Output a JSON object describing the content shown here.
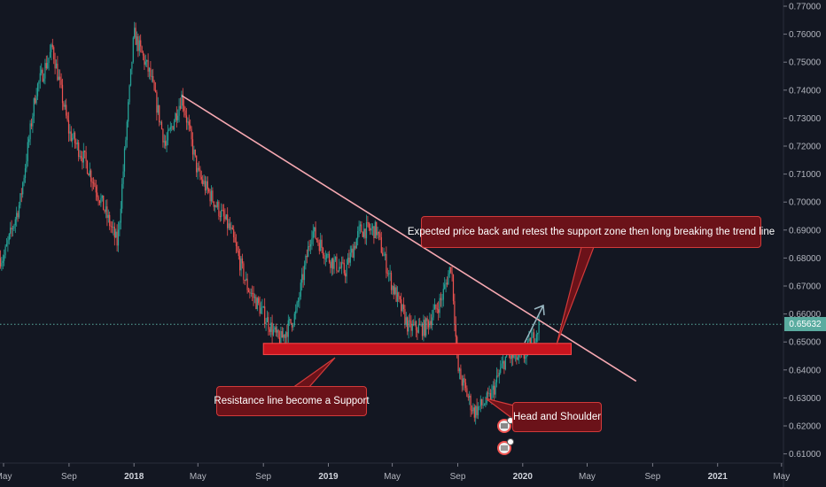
{
  "chart_data": {
    "type": "candlestick",
    "instrument_price_scale": {
      "ylim": [
        0.605,
        0.7725
      ]
    },
    "y_ticks": [
      "0.61000",
      "0.62000",
      "0.63000",
      "0.64000",
      "0.65000",
      "0.66000",
      "0.67000",
      "0.68000",
      "0.69000",
      "0.70000",
      "0.71000",
      "0.72000",
      "0.73000",
      "0.74000",
      "0.75000",
      "0.76000",
      "0.77000"
    ],
    "x_ticks": [
      {
        "label": "May",
        "bold": false
      },
      {
        "label": "Sep",
        "bold": false
      },
      {
        "label": "2018",
        "bold": true
      },
      {
        "label": "May",
        "bold": false
      },
      {
        "label": "Sep",
        "bold": false
      },
      {
        "label": "2019",
        "bold": true
      },
      {
        "label": "May",
        "bold": false
      },
      {
        "label": "Sep",
        "bold": false
      },
      {
        "label": "2020",
        "bold": true
      },
      {
        "label": "May",
        "bold": false
      },
      {
        "label": "Sep",
        "bold": false
      },
      {
        "label": "2021",
        "bold": true
      },
      {
        "label": "May",
        "bold": false
      }
    ],
    "current_price": "0.65632",
    "approx_price_path": [
      {
        "date": "2017-05",
        "value": 0.68
      },
      {
        "date": "2017-06",
        "value": 0.7
      },
      {
        "date": "2017-07",
        "value": 0.74
      },
      {
        "date": "2017-08",
        "value": 0.755
      },
      {
        "date": "2017-09",
        "value": 0.725
      },
      {
        "date": "2017-10",
        "value": 0.715
      },
      {
        "date": "2017-11",
        "value": 0.7
      },
      {
        "date": "2017-12",
        "value": 0.685
      },
      {
        "date": "2018-01",
        "value": 0.76
      },
      {
        "date": "2018-02",
        "value": 0.745
      },
      {
        "date": "2018-03",
        "value": 0.72
      },
      {
        "date": "2018-04",
        "value": 0.738
      },
      {
        "date": "2018-05",
        "value": 0.71
      },
      {
        "date": "2018-06",
        "value": 0.7
      },
      {
        "date": "2018-07",
        "value": 0.69
      },
      {
        "date": "2018-08",
        "value": 0.67
      },
      {
        "date": "2018-09",
        "value": 0.66
      },
      {
        "date": "2018-10",
        "value": 0.65
      },
      {
        "date": "2018-11",
        "value": 0.66
      },
      {
        "date": "2018-12",
        "value": 0.69
      },
      {
        "date": "2019-01",
        "value": 0.68
      },
      {
        "date": "2019-02",
        "value": 0.675
      },
      {
        "date": "2019-03",
        "value": 0.69
      },
      {
        "date": "2019-04",
        "value": 0.69
      },
      {
        "date": "2019-05",
        "value": 0.67
      },
      {
        "date": "2019-06",
        "value": 0.655
      },
      {
        "date": "2019-07",
        "value": 0.655
      },
      {
        "date": "2019-08",
        "value": 0.665
      },
      {
        "date": "2019-08-20",
        "value": 0.678
      },
      {
        "date": "2019-09",
        "value": 0.64
      },
      {
        "date": "2019-10",
        "value": 0.625
      },
      {
        "date": "2019-11",
        "value": 0.63
      },
      {
        "date": "2019-12",
        "value": 0.645
      },
      {
        "date": "2020-01",
        "value": 0.644
      },
      {
        "date": "2020-02",
        "value": 0.656
      }
    ],
    "trend_line": {
      "from": {
        "date": "2018-04",
        "value": 0.738
      },
      "to": {
        "date": "2020-08",
        "value": 0.636
      }
    },
    "support_zone": {
      "from_date": "2018-09",
      "to_date": "2020-04",
      "low": 0.6455,
      "high": 0.6495
    },
    "annotations": [
      "Expected price back and retest the support zone then long breaking the trend line",
      "Resistance line become a Support",
      "Head and Shoulder"
    ],
    "grid": false
  },
  "colors": {
    "background": "#131722",
    "up": "#26a69a",
    "down": "#ef5350",
    "trend_line": "#f7a9b2",
    "support_zone": "#c8141e",
    "callout_bg": "#6b1219",
    "callout_border": "#d23a3a",
    "price_tag": "#5aaca0"
  },
  "icons": [
    "projection-arrow-icon",
    "event-markers-icon"
  ]
}
